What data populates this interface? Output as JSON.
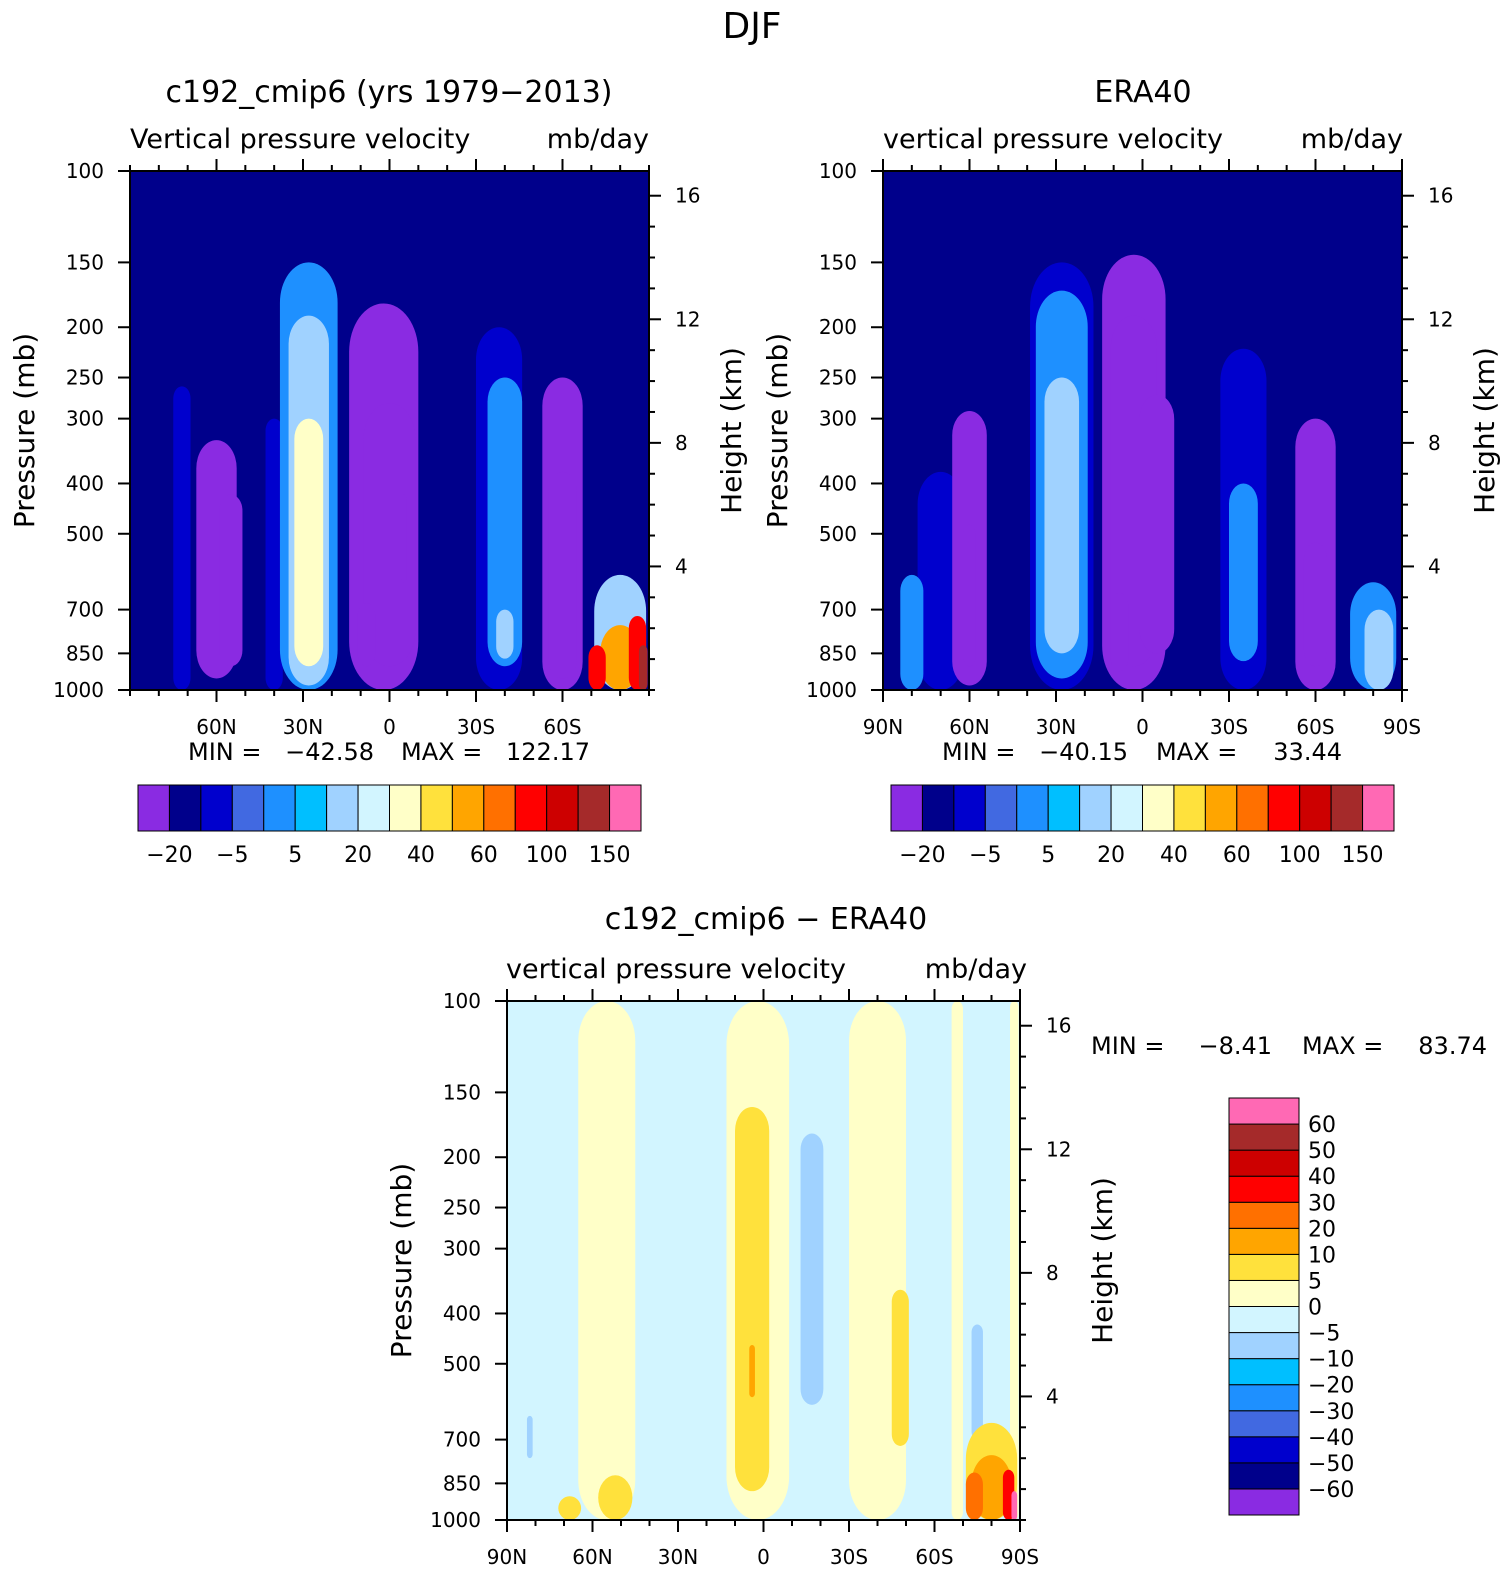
{
  "figure_title": "DJF",
  "colors": {
    "abs_levels": [
      "#8a2be2",
      "#00008b",
      "#0000cd",
      "#4169e1",
      "#1e90ff",
      "#00bfff",
      "#a0d2ff",
      "#d2f5ff",
      "#ffffc8",
      "#ffe13c",
      "#ffa500",
      "#ff7000",
      "#ff0000",
      "#cd0000",
      "#a52a2a",
      "#ff69b4"
    ],
    "diff_levels": [
      "#8a2be2",
      "#00008b",
      "#0000cd",
      "#4169e1",
      "#1e90ff",
      "#00bfff",
      "#a0d2ff",
      "#d2f5ff",
      "#ffffc8",
      "#ffe13c",
      "#ffa500",
      "#ff7000",
      "#ff0000",
      "#cd0000",
      "#a52a2a",
      "#ff69b4"
    ]
  },
  "chart_data": [
    {
      "type": "heatmap",
      "title": "c192_cmip6 (yrs 1979-2013)",
      "subtitle_left": "Vertical pressure velocity",
      "subtitle_right": "mb/day",
      "ylabel": "Pressure (mb)",
      "ylabel_right": "Height (km)",
      "x_tick_labels": [
        "60N",
        "30N",
        "0",
        "30S",
        "60S"
      ],
      "x_ticks": [
        60,
        30,
        0,
        -30,
        -60
      ],
      "y_tick_labels": [
        "100",
        "150",
        "200",
        "250",
        "300",
        "400",
        "500",
        "700",
        "850",
        "1000"
      ],
      "y_ticks": [
        100,
        150,
        200,
        250,
        300,
        400,
        500,
        700,
        850,
        1000
      ],
      "y_right_tick_labels": [
        "16",
        "12",
        "8",
        "4"
      ],
      "y_right_ticks": [
        16,
        12,
        8,
        4
      ],
      "xlim": [
        90,
        -90
      ],
      "ylim": [
        100,
        1000
      ],
      "min_label": "MIN =",
      "min_value": "-42.58",
      "max_label": "MAX =",
      "max_value": "122.17",
      "colorbar_labels": [
        "-20",
        "-5",
        "5",
        "20",
        "40",
        "60",
        "100",
        "150"
      ],
      "background_value": -25,
      "features": [
        {
          "lat": 72,
          "lev_top": 260,
          "lev_bot": 1000,
          "halfwidth": 3,
          "value": -15
        },
        {
          "lat": 60,
          "lev_top": 330,
          "lev_bot": 950,
          "halfwidth": 7,
          "value": -40
        },
        {
          "lat": 55,
          "lev_top": 420,
          "lev_bot": 900,
          "halfwidth": 4,
          "value": -50
        },
        {
          "lat": 40,
          "lev_top": 300,
          "lev_bot": 1000,
          "halfwidth": 3,
          "value": -15
        },
        {
          "lat": 28,
          "lev_top": 150,
          "lev_bot": 1000,
          "halfwidth": 10,
          "value": -5
        },
        {
          "lat": 28,
          "lev_top": 190,
          "lev_bot": 980,
          "halfwidth": 7,
          "value": 5
        },
        {
          "lat": 28,
          "lev_top": 300,
          "lev_bot": 900,
          "halfwidth": 5,
          "value": 20
        },
        {
          "lat": 2,
          "lev_top": 180,
          "lev_bot": 1000,
          "halfwidth": 12,
          "value": -40
        },
        {
          "lat": 0,
          "lev_top": 280,
          "lev_bot": 900,
          "halfwidth": 9,
          "value": -50
        },
        {
          "lat": -5,
          "lev_top": 420,
          "lev_bot": 620,
          "halfwidth": 1,
          "value": -70
        },
        {
          "lat": 8,
          "lev_top": 680,
          "lev_bot": 900,
          "halfwidth": 3,
          "value": -70
        },
        {
          "lat": -38,
          "lev_top": 200,
          "lev_bot": 1000,
          "halfwidth": 8,
          "value": -15
        },
        {
          "lat": -40,
          "lev_top": 250,
          "lev_bot": 900,
          "halfwidth": 6,
          "value": -5
        },
        {
          "lat": -40,
          "lev_top": 700,
          "lev_bot": 870,
          "halfwidth": 3,
          "value": 5
        },
        {
          "lat": -60,
          "lev_top": 250,
          "lev_bot": 1000,
          "halfwidth": 7,
          "value": -40
        },
        {
          "lat": -60,
          "lev_top": 380,
          "lev_bot": 950,
          "halfwidth": 5,
          "value": -50
        },
        {
          "lat": -80,
          "lev_top": 600,
          "lev_bot": 1000,
          "halfwidth": 9,
          "value": 5
        },
        {
          "lat": -80,
          "lev_top": 750,
          "lev_bot": 1000,
          "halfwidth": 7,
          "value": 45
        },
        {
          "lat": -86,
          "lev_top": 720,
          "lev_bot": 1000,
          "halfwidth": 3,
          "value": 70
        },
        {
          "lat": -72,
          "lev_top": 820,
          "lev_bot": 1000,
          "halfwidth": 3,
          "value": 70
        },
        {
          "lat": -88,
          "lev_top": 820,
          "lev_bot": 1000,
          "halfwidth": 1.5,
          "value": 120
        }
      ]
    },
    {
      "type": "heatmap",
      "title": "ERA40",
      "subtitle_left": "vertical pressure velocity",
      "subtitle_right": "mb/day",
      "ylabel": "Pressure (mb)",
      "ylabel_right": "Height (km)",
      "x_tick_labels": [
        "90N",
        "60N",
        "30N",
        "0",
        "30S",
        "60S",
        "90S"
      ],
      "x_ticks": [
        90,
        60,
        30,
        0,
        -30,
        -60,
        -90
      ],
      "y_tick_labels": [
        "100",
        "150",
        "200",
        "250",
        "300",
        "400",
        "500",
        "700",
        "850",
        "1000"
      ],
      "y_ticks": [
        100,
        150,
        200,
        250,
        300,
        400,
        500,
        700,
        850,
        1000
      ],
      "y_right_tick_labels": [
        "16",
        "12",
        "8",
        "4"
      ],
      "y_right_ticks": [
        16,
        12,
        8,
        4
      ],
      "xlim": [
        90,
        -90
      ],
      "ylim": [
        100,
        1000
      ],
      "min_label": "MIN =",
      "min_value": "-40.15",
      "max_label": "MAX =",
      "max_value": "33.44",
      "colorbar_labels": [
        "-20",
        "-5",
        "5",
        "20",
        "40",
        "60",
        "100",
        "150"
      ],
      "background_value": -25,
      "features": [
        {
          "lat": 70,
          "lev_top": 380,
          "lev_bot": 1000,
          "halfwidth": 8,
          "value": -15
        },
        {
          "lat": 60,
          "lev_top": 290,
          "lev_bot": 980,
          "halfwidth": 6,
          "value": -40
        },
        {
          "lat": 60,
          "lev_top": 480,
          "lev_bot": 900,
          "halfwidth": 2,
          "value": -50
        },
        {
          "lat": 28,
          "lev_top": 150,
          "lev_bot": 1000,
          "halfwidth": 11,
          "value": -15
        },
        {
          "lat": 28,
          "lev_top": 170,
          "lev_bot": 950,
          "halfwidth": 9,
          "value": -5
        },
        {
          "lat": 28,
          "lev_top": 250,
          "lev_bot": 850,
          "halfwidth": 6,
          "value": 5
        },
        {
          "lat": 3,
          "lev_top": 145,
          "lev_bot": 1000,
          "halfwidth": 11,
          "value": -40
        },
        {
          "lat": 3,
          "lev_top": 190,
          "lev_bot": 900,
          "halfwidth": 8,
          "value": -50
        },
        {
          "lat": -5,
          "lev_top": 270,
          "lev_bot": 850,
          "halfwidth": 6,
          "value": -70
        },
        {
          "lat": 8,
          "lev_top": 650,
          "lev_bot": 920,
          "halfwidth": 3,
          "value": -70
        },
        {
          "lat": -35,
          "lev_top": 220,
          "lev_bot": 1000,
          "halfwidth": 8,
          "value": -15
        },
        {
          "lat": -35,
          "lev_top": 400,
          "lev_bot": 880,
          "halfwidth": 5,
          "value": -5
        },
        {
          "lat": -60,
          "lev_top": 300,
          "lev_bot": 1000,
          "halfwidth": 7,
          "value": -40
        },
        {
          "lat": -60,
          "lev_top": 520,
          "lev_bot": 900,
          "halfwidth": 4,
          "value": -50
        },
        {
          "lat": -80,
          "lev_top": 620,
          "lev_bot": 1000,
          "halfwidth": 8,
          "value": -5
        },
        {
          "lat": -82,
          "lev_top": 700,
          "lev_bot": 1000,
          "halfwidth": 5,
          "value": 5
        },
        {
          "lat": 80,
          "lev_top": 600,
          "lev_bot": 1000,
          "halfwidth": 4,
          "value": -5
        }
      ]
    },
    {
      "type": "heatmap",
      "title": "c192_cmip6 - ERA40",
      "subtitle_left": "vertical pressure velocity",
      "subtitle_right": "mb/day",
      "ylabel": "Pressure (mb)",
      "ylabel_right": "Height (km)",
      "x_tick_labels": [
        "90N",
        "60N",
        "30N",
        "0",
        "30S",
        "60S",
        "90S"
      ],
      "x_ticks": [
        90,
        60,
        30,
        0,
        -30,
        -60,
        -90
      ],
      "y_tick_labels": [
        "100",
        "150",
        "200",
        "250",
        "300",
        "400",
        "500",
        "700",
        "850",
        "1000"
      ],
      "y_ticks": [
        100,
        150,
        200,
        250,
        300,
        400,
        500,
        700,
        850,
        1000
      ],
      "y_right_tick_labels": [
        "16",
        "12",
        "8",
        "4"
      ],
      "y_right_ticks": [
        16,
        12,
        8,
        4
      ],
      "xlim": [
        90,
        -90
      ],
      "ylim": [
        100,
        1000
      ],
      "min_label": "MIN =",
      "min_value": "-8.41",
      "max_label": "MAX =",
      "max_value": "83.74",
      "colorbar_labels": [
        "60",
        "50",
        "40",
        "30",
        "20",
        "10",
        "5",
        "0",
        "-5",
        "-10",
        "-20",
        "-30",
        "-40",
        "-50",
        "-60"
      ],
      "background_value": -2,
      "features": [
        {
          "lat": 55,
          "lev_top": 100,
          "lev_bot": 1000,
          "halfwidth": 10,
          "value": 2
        },
        {
          "lat": 2,
          "lev_top": 100,
          "lev_bot": 1000,
          "halfwidth": 11,
          "value": 2
        },
        {
          "lat": -40,
          "lev_top": 100,
          "lev_bot": 1000,
          "halfwidth": 10,
          "value": 2
        },
        {
          "lat": -68,
          "lev_top": 100,
          "lev_bot": 1000,
          "halfwidth": 2,
          "value": 2
        },
        {
          "lat": -88,
          "lev_top": 100,
          "lev_bot": 1000,
          "halfwidth": 1.5,
          "value": 2
        },
        {
          "lat": -17,
          "lev_top": 180,
          "lev_bot": 600,
          "halfwidth": 4,
          "value": -7
        },
        {
          "lat": 4,
          "lev_top": 160,
          "lev_bot": 880,
          "halfwidth": 6,
          "value": 7
        },
        {
          "lat": 4,
          "lev_top": 460,
          "lev_bot": 580,
          "halfwidth": 1,
          "value": 15
        },
        {
          "lat": -48,
          "lev_top": 360,
          "lev_bot": 720,
          "halfwidth": 3,
          "value": 7
        },
        {
          "lat": -75,
          "lev_top": 420,
          "lev_bot": 700,
          "halfwidth": 2,
          "value": -7
        },
        {
          "lat": -80,
          "lev_top": 650,
          "lev_bot": 1000,
          "halfwidth": 9,
          "value": 7
        },
        {
          "lat": -80,
          "lev_top": 750,
          "lev_bot": 1000,
          "halfwidth": 7,
          "value": 15
        },
        {
          "lat": -74,
          "lev_top": 810,
          "lev_bot": 1000,
          "halfwidth": 3,
          "value": 25
        },
        {
          "lat": -86,
          "lev_top": 800,
          "lev_bot": 1000,
          "halfwidth": 2,
          "value": 35
        },
        {
          "lat": -88,
          "lev_top": 880,
          "lev_bot": 1000,
          "halfwidth": 1,
          "value": 65
        },
        {
          "lat": 52,
          "lev_top": 820,
          "lev_bot": 1000,
          "halfwidth": 6,
          "value": 7
        },
        {
          "lat": 68,
          "lev_top": 900,
          "lev_bot": 1000,
          "halfwidth": 4,
          "value": 7
        },
        {
          "lat": 82,
          "lev_top": 630,
          "lev_bot": 760,
          "halfwidth": 1,
          "value": -7
        }
      ]
    }
  ]
}
